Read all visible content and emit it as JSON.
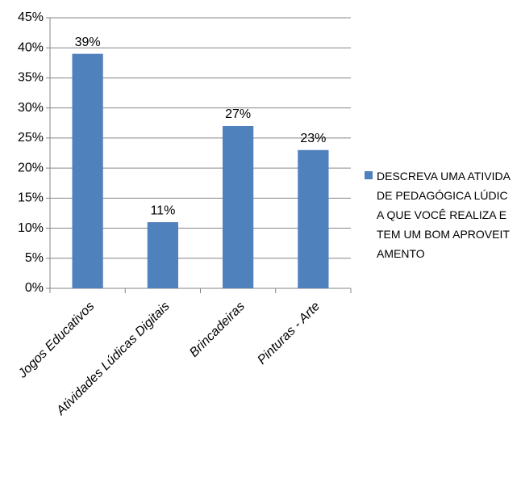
{
  "chart_data": {
    "type": "bar",
    "categories": [
      "Jogos Educativos",
      "Atividades Lúdicas Digitais",
      "Brincadeiras",
      "Pinturas - Arte"
    ],
    "series": [
      {
        "name": "DESCREVA UMA ATIVIDADE PEDAGÓGICA LÚDICA QUE VOCÊ REALIZA E TEM UM BOM APROVEITAMENTO",
        "color": "#4f81bd",
        "values": [
          39,
          11,
          27,
          23
        ],
        "value_labels": [
          "39%",
          "11%",
          "27%",
          "23%"
        ]
      }
    ],
    "ylim": [
      0,
      45
    ],
    "yticks": [
      {
        "value": 0,
        "label": "0%"
      },
      {
        "value": 5,
        "label": "5%"
      },
      {
        "value": 10,
        "label": "10%"
      },
      {
        "value": 15,
        "label": "15%"
      },
      {
        "value": 20,
        "label": "20%"
      },
      {
        "value": 25,
        "label": "25%"
      },
      {
        "value": 30,
        "label": "30%"
      },
      {
        "value": 35,
        "label": "35%"
      },
      {
        "value": 40,
        "label": "40%"
      },
      {
        "value": 45,
        "label": "45%"
      }
    ],
    "grid": true,
    "legend": "right"
  }
}
